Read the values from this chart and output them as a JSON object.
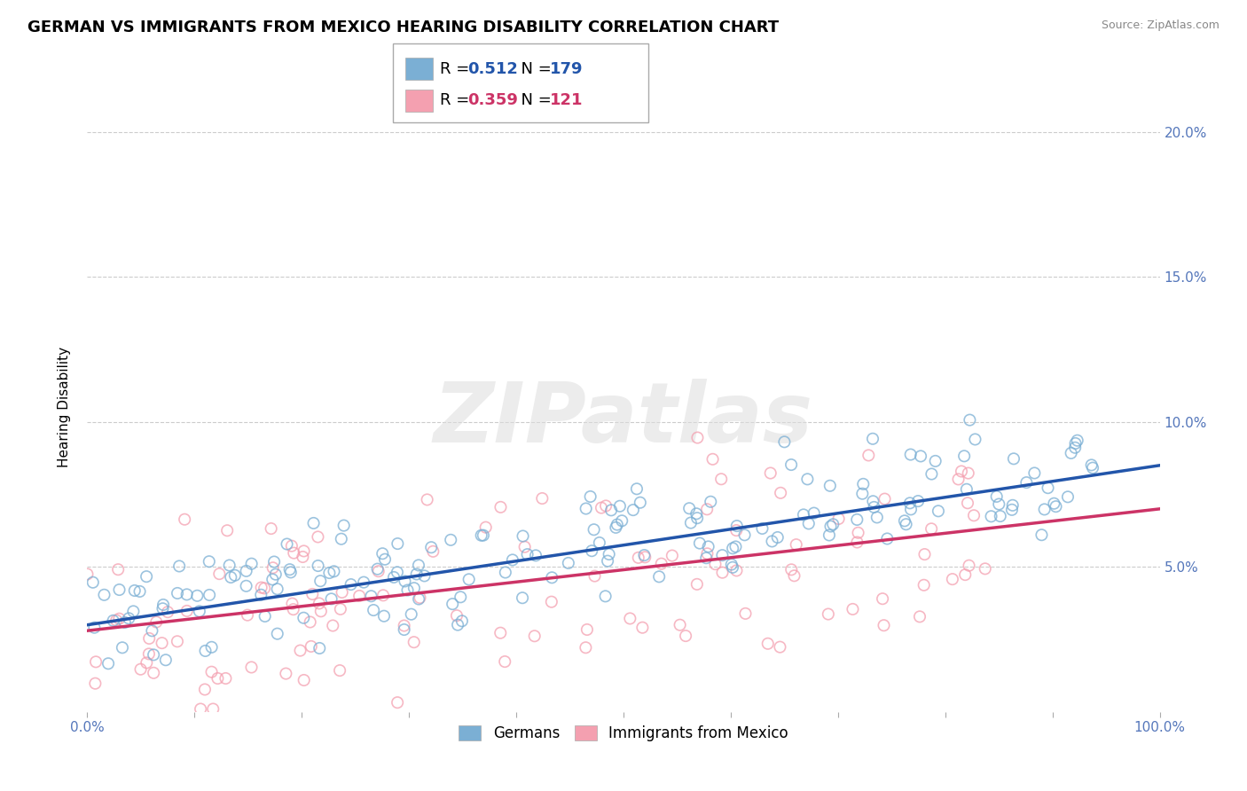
{
  "title": "GERMAN VS IMMIGRANTS FROM MEXICO HEARING DISABILITY CORRELATION CHART",
  "source": "Source: ZipAtlas.com",
  "ylabel": "Hearing Disability",
  "xlabel": "",
  "xlim": [
    0.0,
    1.0
  ],
  "ylim": [
    0.0,
    0.21
  ],
  "xticks": [
    0.0,
    0.1,
    0.2,
    0.3,
    0.4,
    0.5,
    0.6,
    0.7,
    0.8,
    0.9,
    1.0
  ],
  "xtick_labels": [
    "0.0%",
    "",
    "",
    "",
    "",
    "",
    "",
    "",
    "",
    "",
    "100.0%"
  ],
  "yticks": [
    0.0,
    0.05,
    0.1,
    0.15,
    0.2
  ],
  "ytick_labels": [
    "",
    "5.0%",
    "10.0%",
    "15.0%",
    "20.0%"
  ],
  "blue_R": 0.512,
  "blue_N": 179,
  "pink_R": 0.359,
  "pink_N": 121,
  "blue_color": "#7BAFD4",
  "pink_color": "#F4A0B0",
  "line_blue": "#2255AA",
  "line_pink": "#CC3366",
  "legend_label_blue": "Germans",
  "legend_label_pink": "Immigrants from Mexico",
  "watermark_text": "ZIPatlas",
  "title_fontsize": 13,
  "axis_fontsize": 11,
  "tick_fontsize": 11,
  "tick_color": "#5577BB",
  "background_color": "#FFFFFF",
  "grid_color": "#CCCCCC",
  "blue_seed": 42,
  "pink_seed": 13,
  "blue_slope": 0.055,
  "blue_intercept": 0.03,
  "pink_slope": 0.042,
  "pink_intercept": 0.028
}
